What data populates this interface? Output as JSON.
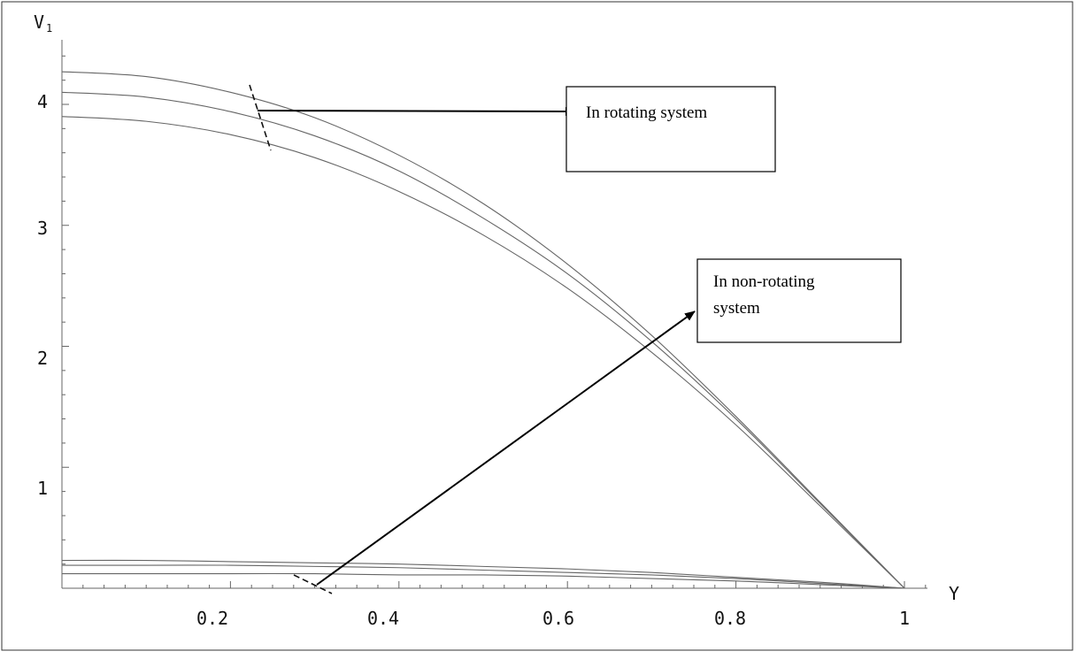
{
  "chart_data": {
    "type": "line",
    "title": "",
    "xlabel": "Y",
    "ylabel": "V",
    "xlim": [
      0,
      1.05
    ],
    "ylim": [
      0,
      4.5
    ],
    "x_ticks": [
      0.2,
      0.4,
      0.6,
      0.8,
      1
    ],
    "x_tick_labels": [
      "0.2",
      "0.4",
      "0.6",
      "0.8",
      "1"
    ],
    "y_ticks": [
      1,
      2,
      3,
      4
    ],
    "y_tick_labels": [
      "1",
      "2",
      "3",
      "4"
    ],
    "grid": false,
    "legend": "none",
    "series": [
      {
        "x": [
          0,
          0.1,
          0.2,
          0.3,
          0.4,
          0.5,
          0.6,
          0.7,
          0.8,
          0.9,
          1.0
        ],
        "values": [
          4.27,
          4.23,
          4.1,
          3.89,
          3.58,
          3.18,
          2.68,
          2.09,
          1.42,
          0.71,
          0
        ]
      },
      {
        "x": [
          0,
          0.1,
          0.2,
          0.3,
          0.4,
          0.5,
          0.6,
          0.7,
          0.8,
          0.9,
          1.0
        ],
        "values": [
          4.1,
          4.06,
          3.94,
          3.74,
          3.45,
          3.06,
          2.6,
          2.04,
          1.4,
          0.7,
          0
        ]
      },
      {
        "x": [
          0,
          0.1,
          0.2,
          0.3,
          0.4,
          0.5,
          0.6,
          0.7,
          0.8,
          0.9,
          1.0
        ],
        "values": [
          3.9,
          3.86,
          3.75,
          3.56,
          3.28,
          2.92,
          2.48,
          1.95,
          1.35,
          0.68,
          0
        ]
      },
      {
        "x": [
          0,
          0.1,
          0.2,
          0.3,
          0.4,
          0.5,
          0.6,
          0.7,
          0.8,
          0.9,
          1.0
        ],
        "values": [
          0.23,
          0.23,
          0.22,
          0.21,
          0.2,
          0.18,
          0.16,
          0.13,
          0.09,
          0.05,
          0
        ]
      },
      {
        "x": [
          0,
          0.1,
          0.2,
          0.3,
          0.4,
          0.5,
          0.6,
          0.7,
          0.8,
          0.9,
          1.0
        ],
        "values": [
          0.19,
          0.19,
          0.19,
          0.18,
          0.17,
          0.15,
          0.13,
          0.11,
          0.08,
          0.04,
          0
        ]
      },
      {
        "x": [
          0,
          0.1,
          0.2,
          0.3,
          0.4,
          0.5,
          0.6,
          0.7,
          0.8,
          0.9,
          1.0
        ],
        "values": [
          0.12,
          0.12,
          0.12,
          0.12,
          0.11,
          0.11,
          0.1,
          0.08,
          0.06,
          0.03,
          0
        ]
      }
    ],
    "annotations": [
      {
        "text_lines": [
          "In rotating system"
        ],
        "arrow_from": {
          "x": 0.23,
          "y": 3.92
        }
      },
      {
        "text_lines": [
          "In non-rotating",
          "system"
        ],
        "arrow_from": {
          "x": 0.3,
          "y": 0.17
        }
      }
    ],
    "colors": {
      "curve": "#666666",
      "axis": "#666666",
      "arrow": "#000000",
      "frame": "#333333"
    }
  }
}
